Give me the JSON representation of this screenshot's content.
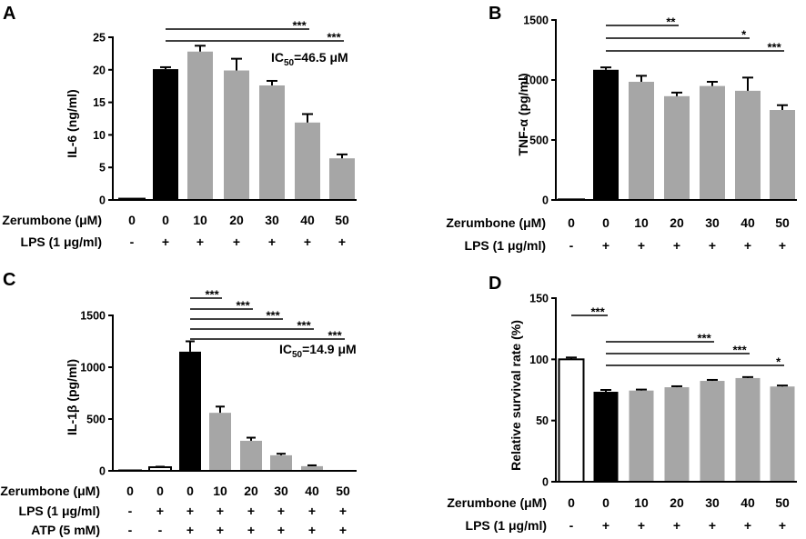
{
  "chart_data": [
    {
      "panel": "A",
      "type": "bar",
      "ylabel": "IL-6 (ng/ml)",
      "ylim": [
        0,
        25
      ],
      "yticks": [
        0,
        5,
        10,
        15,
        20,
        25
      ],
      "rows": [
        {
          "label": "Zerumbone (μM)",
          "cells": [
            "0",
            "0",
            "10",
            "20",
            "30",
            "40",
            "50"
          ]
        },
        {
          "label": "LPS (1 μg/ml)",
          "cells": [
            "-",
            "+",
            "+",
            "+",
            "+",
            "+",
            "+"
          ]
        }
      ],
      "values": [
        0.2,
        20.1,
        22.8,
        19.9,
        17.6,
        11.9,
        6.4
      ],
      "errors": [
        0,
        0.3,
        0.9,
        1.8,
        0.7,
        1.3,
        0.6
      ],
      "fills": [
        "#ffffff",
        "#000000",
        "#a6a6a6",
        "#a6a6a6",
        "#a6a6a6",
        "#a6a6a6",
        "#a6a6a6"
      ],
      "significance": [
        {
          "from": 1,
          "to": 5,
          "label": "***"
        },
        {
          "from": 1,
          "to": 6,
          "label": "***"
        }
      ],
      "annotation": {
        "prefix": "IC",
        "sub": "50",
        "suffix": "=46.5 μM"
      }
    },
    {
      "panel": "B",
      "type": "bar",
      "ylabel": "TNF-α (pg/ml)",
      "ylim": [
        0,
        1500
      ],
      "yticks": [
        0,
        500,
        1000,
        1500
      ],
      "rows": [
        {
          "label": "Zerumbone (μM)",
          "cells": [
            "0",
            "0",
            "10",
            "20",
            "30",
            "40",
            "50"
          ]
        },
        {
          "label": "LPS (1 μg/ml)",
          "cells": [
            "-",
            "+",
            "+",
            "+",
            "+",
            "+",
            "+"
          ]
        }
      ],
      "values": [
        5,
        1085,
        985,
        865,
        950,
        910,
        750
      ],
      "errors": [
        0,
        20,
        50,
        30,
        35,
        110,
        40
      ],
      "fills": [
        "#ffffff",
        "#000000",
        "#a6a6a6",
        "#a6a6a6",
        "#a6a6a6",
        "#a6a6a6",
        "#a6a6a6"
      ],
      "significance": [
        {
          "from": 1,
          "to": 3,
          "label": "**"
        },
        {
          "from": 1,
          "to": 5,
          "label": "*"
        },
        {
          "from": 1,
          "to": 6,
          "label": "***"
        }
      ]
    },
    {
      "panel": "C",
      "type": "bar",
      "ylabel": "IL-1β (pg/ml)",
      "ylim": [
        0,
        1500
      ],
      "yticks": [
        0,
        500,
        1000,
        1500
      ],
      "rows": [
        {
          "label": "Zerumbone (μM)",
          "cells": [
            "0",
            "0",
            "0",
            "10",
            "20",
            "30",
            "40",
            "50"
          ]
        },
        {
          "label": "LPS (1 μg/ml)",
          "cells": [
            "-",
            "+",
            "+",
            "+",
            "+",
            "+",
            "+",
            "+"
          ]
        },
        {
          "label": "ATP (5 mM)",
          "cells": [
            "-",
            "-",
            "+",
            "+",
            "+",
            "+",
            "+",
            "+"
          ]
        }
      ],
      "values": [
        4,
        35,
        1150,
        560,
        290,
        150,
        45,
        4
      ],
      "errors": [
        0,
        5,
        100,
        60,
        30,
        15,
        8,
        0
      ],
      "fills": [
        "#ffffff",
        "#ffffff",
        "#000000",
        "#a6a6a6",
        "#a6a6a6",
        "#a6a6a6",
        "#a6a6a6",
        "#a6a6a6"
      ],
      "significance": [
        {
          "from": 2,
          "to": 3,
          "label": "***"
        },
        {
          "from": 2,
          "to": 4,
          "label": "***"
        },
        {
          "from": 2,
          "to": 5,
          "label": "***"
        },
        {
          "from": 2,
          "to": 6,
          "label": "***"
        },
        {
          "from": 2,
          "to": 7,
          "label": "***"
        }
      ],
      "annotation": {
        "prefix": "IC",
        "sub": "50",
        "suffix": "=14.9 μM"
      }
    },
    {
      "panel": "D",
      "type": "bar",
      "ylabel": "Relative survival rate (%)",
      "ylim": [
        0,
        150
      ],
      "yticks": [
        0,
        50,
        100,
        150
      ],
      "rows": [
        {
          "label": "Zerumbone (μM)",
          "cells": [
            "0",
            "0",
            "10",
            "20",
            "30",
            "40",
            "50"
          ]
        },
        {
          "label": "LPS (1 μg/ml)",
          "cells": [
            "-",
            "+",
            "+",
            "+",
            "+",
            "+",
            "+"
          ]
        }
      ],
      "values": [
        100,
        73.5,
        74.5,
        77.2,
        82.4,
        84.7,
        77.8
      ],
      "errors": [
        1.5,
        1.5,
        0.8,
        0.8,
        0.8,
        0.8,
        0.8
      ],
      "fills": [
        "#ffffff",
        "#000000",
        "#a6a6a6",
        "#a6a6a6",
        "#a6a6a6",
        "#a6a6a6",
        "#a6a6a6"
      ],
      "significance": [
        {
          "from": 0,
          "to": 1,
          "label": "***"
        },
        {
          "from": 1,
          "to": 4,
          "label": "***"
        },
        {
          "from": 1,
          "to": 5,
          "label": "***"
        },
        {
          "from": 1,
          "to": 6,
          "label": "*"
        }
      ]
    }
  ]
}
